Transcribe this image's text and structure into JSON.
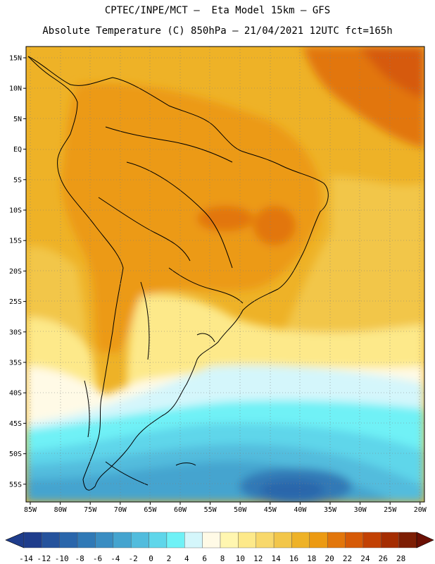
{
  "title_line1": "CPTEC/INPE/MCT –  Eta Model 15km – GFS",
  "title_line2": "Absolute Temperature (C) 850hPa – 21/04/2021 12UTC fct=165h",
  "lat_labels": [
    "15N",
    "10N",
    "5N",
    "EQ",
    "5S",
    "10S",
    "15S",
    "20S",
    "25S",
    "30S",
    "35S",
    "40S",
    "45S",
    "50S",
    "55S"
  ],
  "lon_labels": [
    "85W",
    "80W",
    "75W",
    "70W",
    "65W",
    "60W",
    "55W",
    "50W",
    "45W",
    "40W",
    "35W",
    "30W",
    "25W",
    "20W"
  ],
  "colorbar": {
    "ticks": [
      "-14",
      "-12",
      "-10",
      "-8",
      "-6",
      "-4",
      "-2",
      "0",
      "2",
      "4",
      "6",
      "8",
      "10",
      "12",
      "14",
      "16",
      "18",
      "20",
      "22",
      "24",
      "26",
      "28"
    ],
    "colors": [
      "#1f3d8c",
      "#25529c",
      "#2a66ab",
      "#3079b6",
      "#3a8dc2",
      "#45a4cf",
      "#52bcdd",
      "#5fd6ea",
      "#6ff1f6",
      "#d4f6fb",
      "#fffae6",
      "#fff6b0",
      "#fde98a",
      "#f8d86b",
      "#f2c64a",
      "#eeb227",
      "#ec9a12",
      "#e2760b",
      "#d65a07",
      "#c24104",
      "#a52d02",
      "#7d1e04"
    ]
  }
}
